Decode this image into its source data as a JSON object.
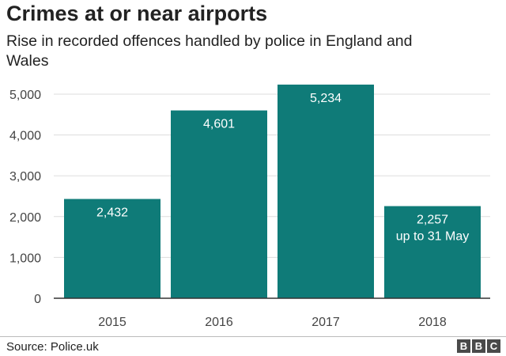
{
  "chart_data": {
    "type": "bar",
    "title": "Crimes at or near airports",
    "subtitle": "Rise in recorded offences handled by police in England and Wales",
    "categories": [
      "2015",
      "2016",
      "2017",
      "2018"
    ],
    "values": [
      2432,
      4601,
      5234,
      2257
    ],
    "data_labels": [
      "2,432",
      "4,601",
      "5,234",
      "2,257"
    ],
    "annotations": [
      "",
      "",
      "",
      "up to 31 May"
    ],
    "yticks": [
      0,
      1000,
      2000,
      3000,
      4000,
      5000
    ],
    "ytick_labels": [
      "0",
      "1,000",
      "2,000",
      "3,000",
      "4,000",
      "5,000"
    ],
    "ylim": [
      0,
      5000
    ],
    "grid": true,
    "bar_color": "#0f7b78",
    "xlabel": "",
    "ylabel": ""
  },
  "footer": {
    "source": "Source: Police.uk",
    "logo_letters": [
      "B",
      "B",
      "C"
    ]
  }
}
